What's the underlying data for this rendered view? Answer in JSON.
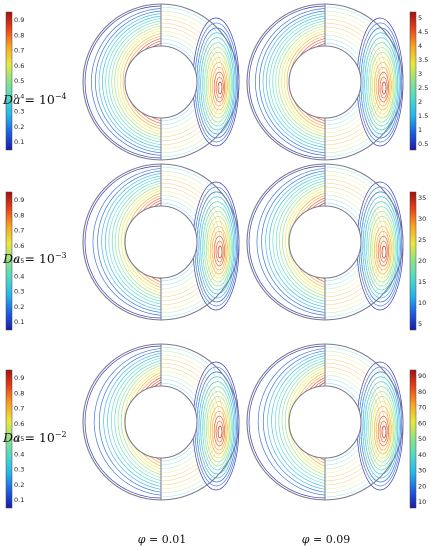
{
  "panel_rows": [
    {
      "da_prefix": "Da",
      "da_eq": "= 10",
      "da_exp": "−4",
      "left_colorbar_ticks": [
        "0.9",
        "0.8",
        "0.7",
        "0.6",
        "0.5",
        "0.4",
        "0.3",
        "0.2",
        "0.1"
      ],
      "right_colorbar_ticks": [
        "5",
        "4.5",
        "4",
        "3.5",
        "3",
        "2.5",
        "2",
        "1.5",
        "1",
        "0.5"
      ]
    },
    {
      "da_prefix": "Da",
      "da_eq": "= 10",
      "da_exp": "−3",
      "left_colorbar_ticks": [
        "0.9",
        "0.8",
        "0.7",
        "0.6",
        "0.5",
        "0.4",
        "0.3",
        "0.2",
        "0.1"
      ],
      "right_colorbar_ticks": [
        "35",
        "30",
        "25",
        "20",
        "15",
        "10",
        "5"
      ]
    },
    {
      "da_prefix": "Da",
      "da_eq": "= 10",
      "da_exp": "−2",
      "left_colorbar_ticks": [
        "0.9",
        "0.8",
        "0.7",
        "0.6",
        "0.5",
        "0.4",
        "0.3",
        "0.2",
        "0.1"
      ],
      "right_colorbar_ticks": [
        "90",
        "80",
        "70",
        "60",
        "50",
        "40",
        "30",
        "20",
        "10"
      ]
    }
  ],
  "column_labels": [
    {
      "symbol": "φ",
      "value": "= 0.01"
    },
    {
      "symbol": "φ",
      "value": "= 0.09"
    }
  ],
  "colormap": [
    "#1a1aa8",
    "#1e5fe0",
    "#27b4e8",
    "#4fd8c8",
    "#8fe08a",
    "#e8e840",
    "#f5a623",
    "#e8451c",
    "#a31010"
  ]
}
